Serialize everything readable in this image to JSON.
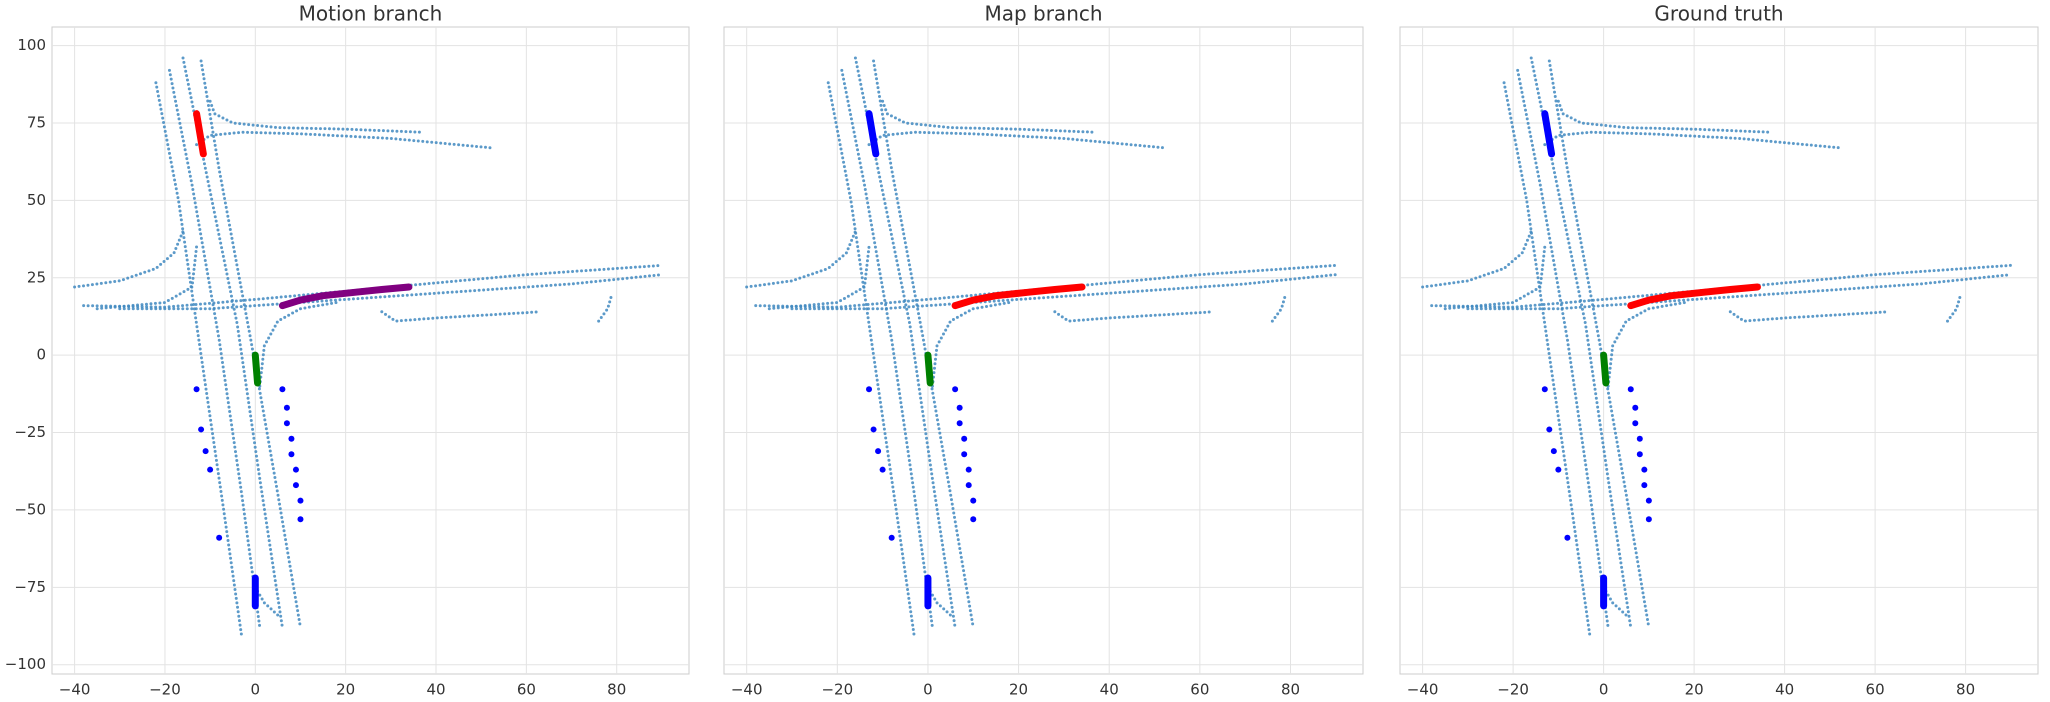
{
  "chart_data": [
    {
      "type": "line",
      "title": "Motion branch",
      "xlim": [
        -45,
        96
      ],
      "ylim": [
        -103,
        106
      ],
      "grid": true,
      "ytick_labels": true,
      "xticks": [
        {
          "value": -40,
          "label": "−40"
        },
        {
          "value": -20,
          "label": "−20"
        },
        0,
        20,
        40,
        60,
        80
      ],
      "yticks": [
        {
          "value": -100,
          "label": "−100"
        },
        {
          "value": -75,
          "label": "−75"
        },
        {
          "value": -50,
          "label": "−50"
        },
        {
          "value": -25,
          "label": "−25"
        },
        0,
        25,
        50,
        75,
        100
      ],
      "series": [
        {
          "color": "#3f88c0",
          "linestyle": "dotted",
          "x": [
            -22,
            -17,
            -12,
            -7,
            -3
          ],
          "y": [
            88,
            50,
            0,
            -50,
            -91
          ]
        },
        {
          "color": "#3f88c0",
          "linestyle": "dotted",
          "x": [
            -19,
            -14,
            -8,
            -3,
            1
          ],
          "y": [
            92,
            55,
            5,
            -45,
            -88
          ]
        },
        {
          "color": "#3f88c0",
          "linestyle": "dotted",
          "x": [
            -16,
            -11,
            -4,
            1,
            6
          ],
          "y": [
            96,
            60,
            10,
            -40,
            -88
          ]
        },
        {
          "color": "#3f88c0",
          "linestyle": "dotted",
          "x": [
            -12,
            -8,
            -1,
            5,
            10
          ],
          "y": [
            95,
            60,
            5,
            -45,
            -88
          ]
        },
        {
          "color": "#3f88c0",
          "linestyle": "dotted",
          "x": [
            -10,
            -9,
            -5,
            5,
            20,
            37
          ],
          "y": [
            82,
            78,
            75,
            73.5,
            73,
            72
          ]
        },
        {
          "color": "#3f88c0",
          "linestyle": "dotted",
          "x": [
            -13,
            -10,
            -3,
            10,
            30,
            52
          ],
          "y": [
            68,
            71,
            72,
            71.5,
            70,
            67
          ]
        },
        {
          "color": "#3f88c0",
          "linestyle": "dotted",
          "x": [
            -38,
            -20,
            0,
            30,
            60,
            90
          ],
          "y": [
            16,
            15.5,
            18,
            22,
            26,
            29
          ]
        },
        {
          "color": "#3f88c0",
          "linestyle": "dotted",
          "x": [
            -30,
            -10,
            10,
            40,
            70,
            90
          ],
          "y": [
            15,
            15,
            17,
            20,
            23,
            26
          ]
        },
        {
          "color": "#3f88c0",
          "linestyle": "dotted",
          "x": [
            -40,
            -30,
            -22,
            -18,
            -16
          ],
          "y": [
            22,
            24,
            28,
            33,
            40
          ]
        },
        {
          "color": "#3f88c0",
          "linestyle": "dotted",
          "x": [
            -35,
            -20,
            -14,
            -13
          ],
          "y": [
            15,
            17,
            22,
            35
          ]
        },
        {
          "color": "#3f88c0",
          "linestyle": "dotted",
          "x": [
            1,
            2,
            5,
            10,
            18
          ],
          "y": [
            -10,
            3,
            11,
            15,
            17
          ]
        },
        {
          "color": "#3f88c0",
          "linestyle": "dotted",
          "x": [
            28,
            31,
            40,
            63
          ],
          "y": [
            14,
            11,
            12,
            14
          ]
        },
        {
          "color": "#3f88c0",
          "linestyle": "dotted",
          "x": [
            76,
            78,
            79
          ],
          "y": [
            11,
            15,
            20
          ]
        },
        {
          "color": "#3f88c0",
          "linestyle": "dotted",
          "x": [
            0,
            2,
            5
          ],
          "y": [
            -75,
            -80,
            -84
          ]
        },
        {
          "color": "#800080",
          "linestyle": "solid",
          "x": [
            6,
            10,
            15,
            22,
            28,
            34
          ],
          "y": [
            16,
            17.8,
            19.2,
            20.3,
            21.2,
            22
          ]
        },
        {
          "color": "#008000",
          "linestyle": "solid",
          "x": [
            0,
            0.5
          ],
          "y": [
            0,
            -9
          ]
        },
        {
          "color": "#0000ff",
          "linestyle": "solid",
          "x": [
            0,
            0
          ],
          "y": [
            -72,
            -81
          ]
        },
        {
          "color": "#ff0000",
          "linestyle": "solid",
          "x": [
            -13,
            -11.5
          ],
          "y": [
            78,
            65
          ]
        },
        {
          "color": "#0000ff",
          "linestyle": "none",
          "x": [
            -13,
            -12,
            -11,
            -10,
            -8
          ],
          "y": [
            -11,
            -24,
            -31,
            -37,
            -59
          ]
        },
        {
          "color": "#0000ff",
          "linestyle": "none",
          "x": [
            6,
            7,
            7,
            8,
            8,
            9,
            9,
            10,
            10
          ],
          "y": [
            -11,
            -17,
            -22,
            -27,
            -32,
            -37,
            -42,
            -47,
            -53
          ]
        }
      ]
    },
    {
      "type": "line",
      "title": "Map branch",
      "xlim": [
        -45,
        96
      ],
      "ylim": [
        -103,
        106
      ],
      "grid": true,
      "ytick_labels": false,
      "xticks": [
        {
          "value": -40,
          "label": "−40"
        },
        {
          "value": -20,
          "label": "−20"
        },
        0,
        20,
        40,
        60,
        80
      ],
      "yticks": [
        -100,
        -75,
        -50,
        -25,
        0,
        25,
        50,
        75,
        100
      ],
      "series": [
        {
          "color": "#3f88c0",
          "linestyle": "dotted",
          "x": [
            -22,
            -17,
            -12,
            -7,
            -3
          ],
          "y": [
            88,
            50,
            0,
            -50,
            -91
          ]
        },
        {
          "color": "#3f88c0",
          "linestyle": "dotted",
          "x": [
            -19,
            -14,
            -8,
            -3,
            1
          ],
          "y": [
            92,
            55,
            5,
            -45,
            -88
          ]
        },
        {
          "color": "#3f88c0",
          "linestyle": "dotted",
          "x": [
            -16,
            -11,
            -4,
            1,
            6
          ],
          "y": [
            96,
            60,
            10,
            -40,
            -88
          ]
        },
        {
          "color": "#3f88c0",
          "linestyle": "dotted",
          "x": [
            -12,
            -8,
            -1,
            5,
            10
          ],
          "y": [
            95,
            60,
            5,
            -45,
            -88
          ]
        },
        {
          "color": "#3f88c0",
          "linestyle": "dotted",
          "x": [
            -10,
            -9,
            -5,
            5,
            20,
            37
          ],
          "y": [
            82,
            78,
            75,
            73.5,
            73,
            72
          ]
        },
        {
          "color": "#3f88c0",
          "linestyle": "dotted",
          "x": [
            -13,
            -10,
            -3,
            10,
            30,
            52
          ],
          "y": [
            68,
            71,
            72,
            71.5,
            70,
            67
          ]
        },
        {
          "color": "#3f88c0",
          "linestyle": "dotted",
          "x": [
            -38,
            -20,
            0,
            30,
            60,
            90
          ],
          "y": [
            16,
            15.5,
            18,
            22,
            26,
            29
          ]
        },
        {
          "color": "#3f88c0",
          "linestyle": "dotted",
          "x": [
            -30,
            -10,
            10,
            40,
            70,
            90
          ],
          "y": [
            15,
            15,
            17,
            20,
            23,
            26
          ]
        },
        {
          "color": "#3f88c0",
          "linestyle": "dotted",
          "x": [
            -40,
            -30,
            -22,
            -18,
            -16
          ],
          "y": [
            22,
            24,
            28,
            33,
            40
          ]
        },
        {
          "color": "#3f88c0",
          "linestyle": "dotted",
          "x": [
            -35,
            -20,
            -14,
            -13
          ],
          "y": [
            15,
            17,
            22,
            35
          ]
        },
        {
          "color": "#3f88c0",
          "linestyle": "dotted",
          "x": [
            1,
            2,
            5,
            10,
            18
          ],
          "y": [
            -10,
            3,
            11,
            15,
            17
          ]
        },
        {
          "color": "#3f88c0",
          "linestyle": "dotted",
          "x": [
            28,
            31,
            40,
            63
          ],
          "y": [
            14,
            11,
            12,
            14
          ]
        },
        {
          "color": "#3f88c0",
          "linestyle": "dotted",
          "x": [
            76,
            78,
            79
          ],
          "y": [
            11,
            15,
            20
          ]
        },
        {
          "color": "#3f88c0",
          "linestyle": "dotted",
          "x": [
            0,
            2,
            5
          ],
          "y": [
            -75,
            -80,
            -84
          ]
        },
        {
          "color": "#ff0000",
          "linestyle": "solid",
          "x": [
            6,
            10,
            15,
            22,
            28,
            34
          ],
          "y": [
            16,
            17.8,
            19.2,
            20.3,
            21.2,
            22
          ]
        },
        {
          "color": "#008000",
          "linestyle": "solid",
          "x": [
            0,
            0.5
          ],
          "y": [
            0,
            -9
          ]
        },
        {
          "color": "#0000ff",
          "linestyle": "solid",
          "x": [
            0,
            0
          ],
          "y": [
            -72,
            -81
          ]
        },
        {
          "color": "#0000ff",
          "linestyle": "solid",
          "x": [
            -13,
            -11.5
          ],
          "y": [
            78,
            65
          ]
        },
        {
          "color": "#0000ff",
          "linestyle": "none",
          "x": [
            -13,
            -12,
            -11,
            -10,
            -8
          ],
          "y": [
            -11,
            -24,
            -31,
            -37,
            -59
          ]
        },
        {
          "color": "#0000ff",
          "linestyle": "none",
          "x": [
            6,
            7,
            7,
            8,
            8,
            9,
            9,
            10,
            10
          ],
          "y": [
            -11,
            -17,
            -22,
            -27,
            -32,
            -37,
            -42,
            -47,
            -53
          ]
        }
      ]
    },
    {
      "type": "line",
      "title": "Ground truth",
      "xlim": [
        -45,
        96
      ],
      "ylim": [
        -103,
        106
      ],
      "grid": true,
      "ytick_labels": false,
      "xticks": [
        {
          "value": -40,
          "label": "−40"
        },
        {
          "value": -20,
          "label": "−20"
        },
        0,
        20,
        40,
        60,
        80
      ],
      "yticks": [
        -100,
        -75,
        -50,
        -25,
        0,
        25,
        50,
        75,
        100
      ],
      "series": [
        {
          "color": "#3f88c0",
          "linestyle": "dotted",
          "x": [
            -22,
            -17,
            -12,
            -7,
            -3
          ],
          "y": [
            88,
            50,
            0,
            -50,
            -91
          ]
        },
        {
          "color": "#3f88c0",
          "linestyle": "dotted",
          "x": [
            -19,
            -14,
            -8,
            -3,
            1
          ],
          "y": [
            92,
            55,
            5,
            -45,
            -88
          ]
        },
        {
          "color": "#3f88c0",
          "linestyle": "dotted",
          "x": [
            -16,
            -11,
            -4,
            1,
            6
          ],
          "y": [
            96,
            60,
            10,
            -40,
            -88
          ]
        },
        {
          "color": "#3f88c0",
          "linestyle": "dotted",
          "x": [
            -12,
            -8,
            -1,
            5,
            10
          ],
          "y": [
            95,
            60,
            5,
            -45,
            -88
          ]
        },
        {
          "color": "#3f88c0",
          "linestyle": "dotted",
          "x": [
            -10,
            -9,
            -5,
            5,
            20,
            37
          ],
          "y": [
            82,
            78,
            75,
            73.5,
            73,
            72
          ]
        },
        {
          "color": "#3f88c0",
          "linestyle": "dotted",
          "x": [
            -13,
            -10,
            -3,
            10,
            30,
            52
          ],
          "y": [
            68,
            71,
            72,
            71.5,
            70,
            67
          ]
        },
        {
          "color": "#3f88c0",
          "linestyle": "dotted",
          "x": [
            -38,
            -20,
            0,
            30,
            60,
            90
          ],
          "y": [
            16,
            15.5,
            18,
            22,
            26,
            29
          ]
        },
        {
          "color": "#3f88c0",
          "linestyle": "dotted",
          "x": [
            -30,
            -10,
            10,
            40,
            70,
            90
          ],
          "y": [
            15,
            15,
            17,
            20,
            23,
            26
          ]
        },
        {
          "color": "#3f88c0",
          "linestyle": "dotted",
          "x": [
            -40,
            -30,
            -22,
            -18,
            -16
          ],
          "y": [
            22,
            24,
            28,
            33,
            40
          ]
        },
        {
          "color": "#3f88c0",
          "linestyle": "dotted",
          "x": [
            -35,
            -20,
            -14,
            -13
          ],
          "y": [
            15,
            17,
            22,
            35
          ]
        },
        {
          "color": "#3f88c0",
          "linestyle": "dotted",
          "x": [
            1,
            2,
            5,
            10,
            18
          ],
          "y": [
            -10,
            3,
            11,
            15,
            17
          ]
        },
        {
          "color": "#3f88c0",
          "linestyle": "dotted",
          "x": [
            28,
            31,
            40,
            63
          ],
          "y": [
            14,
            11,
            12,
            14
          ]
        },
        {
          "color": "#3f88c0",
          "linestyle": "dotted",
          "x": [
            76,
            78,
            79
          ],
          "y": [
            11,
            15,
            20
          ]
        },
        {
          "color": "#3f88c0",
          "linestyle": "dotted",
          "x": [
            0,
            2,
            5
          ],
          "y": [
            -75,
            -80,
            -84
          ]
        },
        {
          "color": "#ff0000",
          "linestyle": "solid",
          "x": [
            6,
            10,
            15,
            22,
            28,
            34
          ],
          "y": [
            16,
            17.8,
            19.2,
            20.3,
            21.2,
            22
          ]
        },
        {
          "color": "#008000",
          "linestyle": "solid",
          "x": [
            0,
            0.5
          ],
          "y": [
            0,
            -9
          ]
        },
        {
          "color": "#0000ff",
          "linestyle": "solid",
          "x": [
            0,
            0
          ],
          "y": [
            -72,
            -81
          ]
        },
        {
          "color": "#0000ff",
          "linestyle": "solid",
          "x": [
            -13,
            -11.5
          ],
          "y": [
            78,
            65
          ]
        },
        {
          "color": "#0000ff",
          "linestyle": "none",
          "x": [
            -13,
            -12,
            -11,
            -10,
            -8
          ],
          "y": [
            -11,
            -24,
            -31,
            -37,
            -59
          ]
        },
        {
          "color": "#0000ff",
          "linestyle": "none",
          "x": [
            6,
            7,
            7,
            8,
            8,
            9,
            9,
            10,
            10
          ],
          "y": [
            -11,
            -17,
            -22,
            -27,
            -32,
            -37,
            -42,
            -47,
            -53
          ]
        }
      ]
    }
  ]
}
